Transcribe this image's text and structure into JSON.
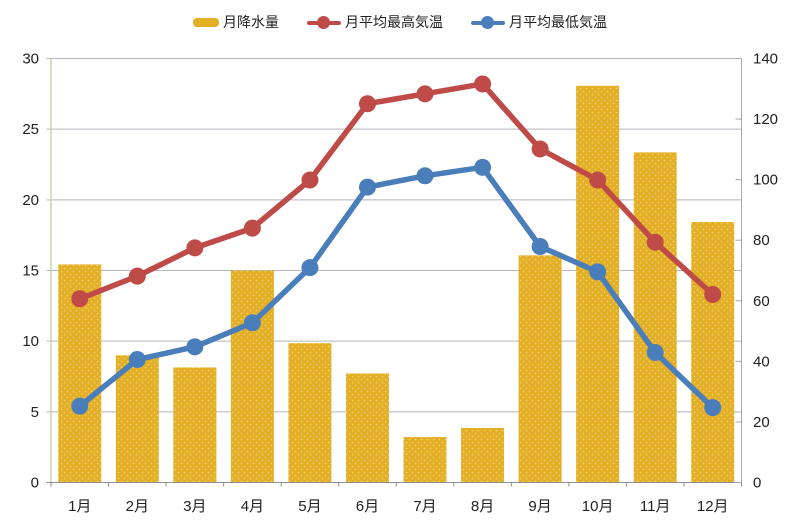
{
  "legend": {
    "items": [
      {
        "label": "月降水量",
        "swatch": "bar",
        "color": "#E3AF25"
      },
      {
        "label": "月平均最高気温",
        "swatch": "line-dot",
        "color": "#BE4B48"
      },
      {
        "label": "月平均最低気温",
        "swatch": "line-dot",
        "color": "#4A7EBB"
      }
    ]
  },
  "chart_data": {
    "type": "combo",
    "categories": [
      "1月",
      "2月",
      "3月",
      "4月",
      "5月",
      "6月",
      "7月",
      "8月",
      "9月",
      "10月",
      "11月",
      "12月"
    ],
    "series": [
      {
        "name": "月降水量",
        "type": "bar",
        "axis": "right",
        "color": "#E3AF25",
        "values": [
          72,
          42,
          38,
          70,
          46,
          36,
          15,
          18,
          75,
          131,
          109,
          86
        ]
      },
      {
        "name": "月平均最高気温",
        "type": "line",
        "axis": "left",
        "color": "#BE4B48",
        "values": [
          13.0,
          14.6,
          16.6,
          18.0,
          21.4,
          26.8,
          27.5,
          28.2,
          23.6,
          21.4,
          17.0,
          13.3
        ]
      },
      {
        "name": "月平均最低気温",
        "type": "line",
        "axis": "left",
        "color": "#4A7EBB",
        "values": [
          5.4,
          8.7,
          9.6,
          11.3,
          15.2,
          20.9,
          21.7,
          22.3,
          16.7,
          14.9,
          9.2,
          5.3
        ]
      }
    ],
    "left_axis": {
      "min": 0,
      "max": 30,
      "step": 5,
      "tick_labels": [
        "0",
        "5",
        "10",
        "15",
        "20",
        "25",
        "30"
      ]
    },
    "right_axis": {
      "min": 0,
      "max": 140,
      "step": 20,
      "tick_labels": [
        "0",
        "20",
        "40",
        "60",
        "80",
        "100",
        "120",
        "140"
      ]
    },
    "grid": true,
    "legend_position": "top"
  },
  "colors": {
    "bar_fill": "#E3AF25",
    "bar_dots": "#F2D284",
    "line_max": "#BE4B48",
    "line_min": "#4A7EBB",
    "gridline": "#B5B5BD",
    "axis_left_line": "#C3D69B",
    "axis_bottom_line": "#8E8E8E",
    "axis_right_line": "#A6A6A6",
    "label_text": "#212121"
  }
}
